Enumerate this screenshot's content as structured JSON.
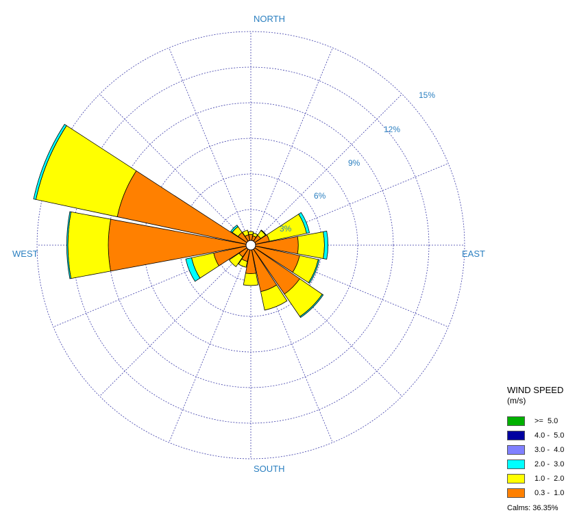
{
  "chart_data": {
    "type": "polar-bar",
    "directions": [
      "N",
      "NNE",
      "NE",
      "ENE",
      "E",
      "ESE",
      "SE",
      "SSE",
      "S",
      "SSW",
      "SW",
      "WSW",
      "W",
      "WNW",
      "NW",
      "NNW"
    ],
    "ring_labels": [
      "3%",
      "6%",
      "9%",
      "12%",
      "15%"
    ],
    "rings": [
      3,
      6,
      9,
      12,
      15,
      18
    ],
    "compass": {
      "north": "NORTH",
      "east": "EAST",
      "south": "SOUTH",
      "west": "WEST"
    },
    "legend": {
      "title": "WIND SPEED",
      "unit": "(m/s)",
      "calms": "Calms: 36.35%",
      "classes": [
        {
          "label": ">=  5.0",
          "color": "#00b000"
        },
        {
          "label": "4.0 -  5.0",
          "color": "#0000a0"
        },
        {
          "label": "3.0 -  4.0",
          "color": "#8080ff"
        },
        {
          "label": "2.0 -  3.0",
          "color": "#00ffff"
        },
        {
          "label": "1.0 -  2.0",
          "color": "#ffff00"
        },
        {
          "label": "0.3 -  1.0",
          "color": "#ff8000"
        }
      ]
    },
    "series": [
      {
        "name": "0.3 -  1.0",
        "values": [
          0.9,
          0.8,
          1.0,
          1.6,
          4.0,
          4.2,
          5.0,
          4.0,
          2.4,
          1.4,
          1.2,
          3.2,
          12.0,
          11.5,
          1.3,
          0.9
        ]
      },
      {
        "name": "1.0 -  2.0",
        "values": [
          0.25,
          0.25,
          0.5,
          3.2,
          2.2,
          1.6,
          2.3,
          1.6,
          1.0,
          0.5,
          1.0,
          1.9,
          3.4,
          7.0,
          0.6,
          0.4
        ]
      },
      {
        "name": "2.0 -  3.0",
        "values": [
          0,
          0,
          0.05,
          0.25,
          0.3,
          0.1,
          0.1,
          0,
          0,
          0,
          0,
          0.5,
          0.1,
          0.2,
          0.15,
          0
        ]
      },
      {
        "name": "3.0 -  4.0",
        "values": [
          0,
          0,
          0,
          0,
          0,
          0,
          0,
          0,
          0,
          0,
          0,
          0,
          0,
          0,
          0,
          0
        ]
      },
      {
        "name": "4.0 -  5.0",
        "values": [
          0,
          0,
          0,
          0,
          0,
          0,
          0,
          0,
          0,
          0,
          0,
          0,
          0,
          0,
          0,
          0
        ]
      },
      {
        "name": ">=  5.0",
        "values": [
          0,
          0,
          0,
          0,
          0,
          0,
          0,
          0,
          0,
          0,
          0,
          0,
          0,
          0,
          0,
          0
        ]
      }
    ]
  }
}
